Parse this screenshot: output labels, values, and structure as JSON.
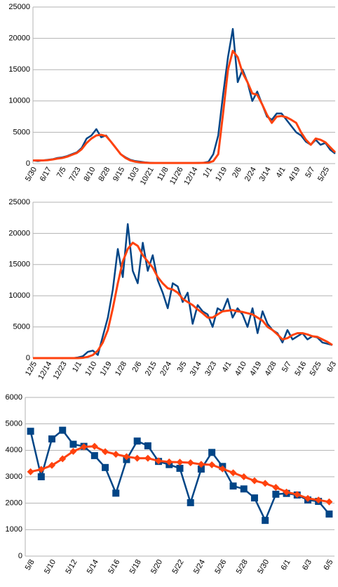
{
  "chart_data": [
    {
      "type": "line",
      "categories": [
        "5/30",
        null,
        null,
        "6/17",
        null,
        null,
        "7/5",
        null,
        null,
        "7/23",
        null,
        null,
        "8/10",
        null,
        null,
        "8/28",
        null,
        null,
        "9/15",
        null,
        null,
        "10/3",
        null,
        null,
        "10/21",
        null,
        null,
        "11/8",
        null,
        null,
        "11/26",
        null,
        null,
        "12/14",
        null,
        null,
        "1/1",
        null,
        null,
        "1/19",
        null,
        null,
        "2/6",
        null,
        null,
        "2/24",
        null,
        null,
        "3/14",
        null,
        null,
        "4/1",
        null,
        null,
        "4/19",
        null,
        null,
        "5/7",
        null,
        null,
        "5/25",
        null,
        null
      ],
      "series": [
        {
          "color": "#004586",
          "values": [
            500,
            400,
            500,
            600,
            700,
            900,
            1000,
            1200,
            1500,
            1800,
            2500,
            4000,
            4500,
            5500,
            4200,
            4500,
            3500,
            2500,
            1500,
            1000,
            600,
            400,
            300,
            200,
            150,
            100,
            100,
            100,
            100,
            100,
            100,
            100,
            100,
            100,
            120,
            150,
            300,
            1500,
            4500,
            11000,
            17000,
            21500,
            13000,
            15000,
            13000,
            10000,
            11500,
            9500,
            7500,
            7000,
            8000,
            8000,
            7000,
            6000,
            5000,
            4500,
            3500,
            3000,
            3800,
            3000,
            3300,
            2200,
            1600
          ]
        },
        {
          "color": "#ff420e",
          "values": [
            500,
            500,
            500,
            550,
            650,
            800,
            900,
            1100,
            1400,
            1700,
            2300,
            3300,
            4000,
            4500,
            4600,
            4400,
            3500,
            2500,
            1500,
            900,
            500,
            300,
            200,
            150,
            100,
            100,
            100,
            100,
            100,
            100,
            100,
            100,
            100,
            100,
            100,
            120,
            150,
            400,
            1500,
            8000,
            15000,
            18000,
            17000,
            14500,
            13000,
            11200,
            11000,
            9500,
            7800,
            6500,
            7500,
            7600,
            7400,
            7000,
            6500,
            5000,
            3800,
            3000,
            4000,
            3800,
            3400,
            2600,
            1800
          ]
        }
      ],
      "ylim": [
        0,
        25000
      ],
      "yticks": [
        0,
        5000,
        10000,
        15000,
        20000,
        25000
      ],
      "grid": true
    },
    {
      "type": "line",
      "categories": [
        "12/5",
        null,
        null,
        "12/14",
        null,
        null,
        "12/23",
        null,
        null,
        "1/1",
        null,
        null,
        "1/10",
        null,
        null,
        "1/19",
        null,
        null,
        "1/28",
        null,
        null,
        "2/6",
        null,
        null,
        "2/15",
        null,
        null,
        "2/24",
        null,
        null,
        "3/5",
        null,
        null,
        "3/14",
        null,
        null,
        "3/23",
        null,
        null,
        "4/1",
        null,
        null,
        "4/10",
        null,
        null,
        "4/19",
        null,
        null,
        "4/28",
        null,
        null,
        "5/7",
        null,
        null,
        "5/16",
        null,
        null,
        "5/25",
        null,
        null,
        "6/3"
      ],
      "series": [
        {
          "color": "#004586",
          "values": [
            0,
            0,
            0,
            0,
            0,
            0,
            0,
            0,
            0,
            100,
            300,
            1000,
            1200,
            500,
            3500,
            6500,
            11000,
            17500,
            13000,
            21500,
            14000,
            12000,
            18500,
            14000,
            16500,
            12500,
            10500,
            8000,
            12000,
            11500,
            9000,
            10500,
            5500,
            8500,
            7500,
            7000,
            5000,
            8000,
            7500,
            9500,
            6500,
            8000,
            7000,
            5000,
            8000,
            4000,
            7500,
            5500,
            4500,
            4000,
            2500,
            4500,
            3000,
            3500,
            4000,
            3000,
            3500,
            3300,
            2500,
            2300,
            2100
          ]
        },
        {
          "color": "#ff420e",
          "values": [
            0,
            0,
            0,
            0,
            0,
            0,
            0,
            0,
            0,
            0,
            50,
            200,
            500,
            1200,
            2500,
            4500,
            8000,
            12000,
            15500,
            17500,
            18500,
            18000,
            16500,
            15500,
            14500,
            13000,
            12000,
            11200,
            11000,
            10500,
            9500,
            9000,
            8500,
            7800,
            7200,
            6500,
            6500,
            7000,
            7500,
            7600,
            7700,
            7500,
            7400,
            7200,
            7000,
            6500,
            6000,
            5000,
            4500,
            3800,
            3000,
            3200,
            3700,
            4000,
            4000,
            3800,
            3500,
            3400,
            3000,
            2600,
            2100
          ]
        }
      ],
      "ylim": [
        0,
        25000
      ],
      "yticks": [
        0,
        5000,
        10000,
        15000,
        20000,
        25000
      ],
      "grid": true
    },
    {
      "type": "line",
      "categories": [
        "5/8",
        null,
        "5/10",
        null,
        "5/12",
        null,
        "5/14",
        null,
        "5/16",
        null,
        "5/18",
        null,
        "5/20",
        null,
        "5/22",
        null,
        "5/24",
        null,
        "5/26",
        null,
        "5/28",
        null,
        "5/30",
        null,
        "6/1",
        null,
        "6/3",
        null,
        "6/5"
      ],
      "series": [
        {
          "color": "#004586",
          "marker": "square",
          "values": [
            4720,
            3000,
            4430,
            4760,
            4230,
            4150,
            3800,
            3350,
            2380,
            3650,
            4350,
            4170,
            3580,
            3460,
            3320,
            2020,
            3290,
            3920,
            3390,
            2650,
            2540,
            2200,
            1350,
            2340,
            2370,
            2310,
            2120,
            2070,
            1590
          ]
        },
        {
          "color": "#ff420e",
          "marker": "diamond",
          "values": [
            3190,
            3280,
            3430,
            3680,
            3960,
            4130,
            4150,
            3950,
            3850,
            3760,
            3700,
            3700,
            3600,
            3560,
            3550,
            3530,
            3470,
            3450,
            3300,
            3150,
            3000,
            2850,
            2750,
            2600,
            2420,
            2330,
            2180,
            2120,
            2050
          ]
        }
      ],
      "ylim": [
        0,
        6000
      ],
      "yticks": [
        0,
        1000,
        2000,
        3000,
        4000,
        5000,
        6000
      ],
      "grid": true
    }
  ]
}
